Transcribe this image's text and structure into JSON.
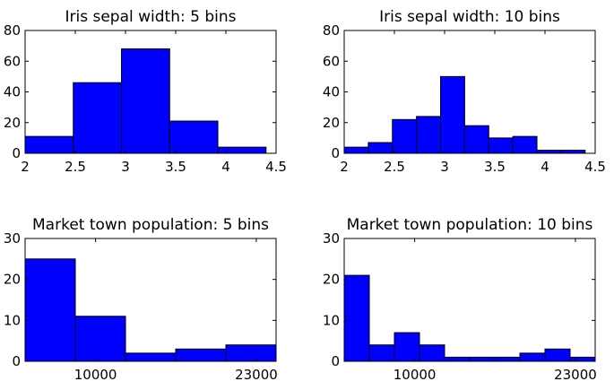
{
  "colors": {
    "bar_fill": "#0000ff",
    "bar_edge": "#000000",
    "axes": "#000000",
    "background": "#ffffff"
  },
  "chart_data": [
    {
      "type": "bar",
      "title": "Iris sepal width: 5 bins",
      "bin_edges": [
        2.0,
        2.48,
        2.96,
        3.44,
        3.92,
        4.4
      ],
      "values": [
        11,
        46,
        68,
        21,
        4
      ],
      "xlim": [
        2,
        4.5
      ],
      "ylim": [
        0,
        80
      ],
      "xticks": [
        2,
        2.5,
        3,
        3.5,
        4,
        4.5
      ],
      "xtick_labels": [
        "2",
        "2.5",
        "3",
        "3.5",
        "4",
        "4.5"
      ],
      "yticks": [
        0,
        20,
        40,
        60,
        80
      ],
      "ytick_labels": [
        "0",
        "20",
        "40",
        "60",
        "80"
      ],
      "grid": false
    },
    {
      "type": "bar",
      "title": "Iris sepal width: 10 bins",
      "bin_edges": [
        2.0,
        2.24,
        2.48,
        2.72,
        2.96,
        3.2,
        3.44,
        3.68,
        3.92,
        4.16,
        4.4
      ],
      "values": [
        4,
        7,
        22,
        24,
        50,
        18,
        10,
        11,
        2,
        2
      ],
      "xlim": [
        2,
        4.5
      ],
      "ylim": [
        0,
        80
      ],
      "xticks": [
        2,
        2.5,
        3,
        3.5,
        4,
        4.5
      ],
      "xtick_labels": [
        "2",
        "2.5",
        "3",
        "3.5",
        "4",
        "4.5"
      ],
      "yticks": [
        0,
        20,
        40,
        60,
        80
      ],
      "ytick_labels": [
        "0",
        "20",
        "40",
        "60",
        "80"
      ],
      "grid": false
    },
    {
      "type": "bar",
      "title": "Market town population: 5 bins",
      "bin_edges": [
        4300,
        8360,
        12420,
        16480,
        20540,
        24600
      ],
      "values": [
        25,
        11,
        2,
        3,
        4
      ],
      "xlim": [
        4300,
        24600
      ],
      "ylim": [
        0,
        30
      ],
      "xticks": [
        10000,
        23000
      ],
      "xtick_labels": [
        "10000",
        "23000"
      ],
      "yticks": [
        0,
        10,
        20,
        30
      ],
      "ytick_labels": [
        "0",
        "10",
        "20",
        "30"
      ],
      "grid": false
    },
    {
      "type": "bar",
      "title": "Market town population: 10 bins",
      "bin_edges": [
        4300,
        6330,
        8360,
        10390,
        12420,
        14450,
        16480,
        18510,
        20540,
        22570,
        24600
      ],
      "values": [
        21,
        4,
        7,
        4,
        1,
        1,
        1,
        2,
        3,
        1
      ],
      "xlim": [
        4300,
        24600
      ],
      "ylim": [
        0,
        30
      ],
      "xticks": [
        10000,
        23000
      ],
      "xtick_labels": [
        "10000",
        "23000"
      ],
      "yticks": [
        0,
        10,
        20,
        30
      ],
      "ytick_labels": [
        "0",
        "10",
        "20",
        "30"
      ],
      "grid": false
    }
  ]
}
